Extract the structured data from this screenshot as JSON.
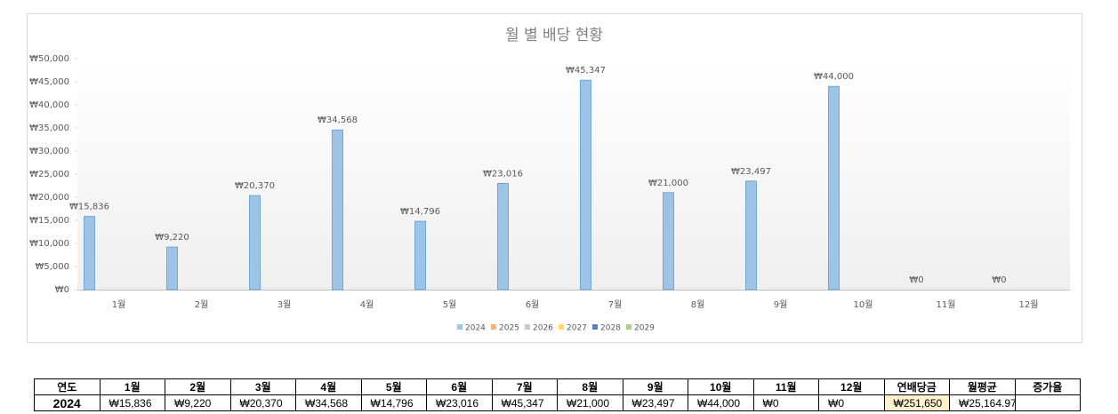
{
  "chart_data": {
    "type": "bar",
    "title": "월 별 배당 현황",
    "categories": [
      "1월",
      "2월",
      "3월",
      "4월",
      "5월",
      "6월",
      "7월",
      "8월",
      "9월",
      "10월",
      "11월",
      "12월"
    ],
    "series": [
      {
        "name": "2024",
        "color": "#9dc3e6",
        "values": [
          15836,
          9220,
          20370,
          34568,
          14796,
          23016,
          45347,
          21000,
          23497,
          44000,
          0,
          0
        ],
        "value_labels": [
          "₩15,836",
          "₩9,220",
          "₩20,370",
          "₩34,568",
          "₩14,796",
          "₩23,016",
          "₩45,347",
          "₩21,000",
          "₩23,497",
          "₩44,000",
          "₩0",
          "₩0"
        ]
      },
      {
        "name": "2025",
        "color": "#f4b183",
        "values": [
          null,
          null,
          null,
          null,
          null,
          null,
          null,
          null,
          null,
          null,
          null,
          null
        ]
      },
      {
        "name": "2026",
        "color": "#c9c9c9",
        "values": [
          null,
          null,
          null,
          null,
          null,
          null,
          null,
          null,
          null,
          null,
          null,
          null
        ]
      },
      {
        "name": "2027",
        "color": "#ffd966",
        "values": [
          null,
          null,
          null,
          null,
          null,
          null,
          null,
          null,
          null,
          null,
          null,
          null
        ]
      },
      {
        "name": "2028",
        "color": "#5b7fc4",
        "values": [
          null,
          null,
          null,
          null,
          null,
          null,
          null,
          null,
          null,
          null,
          null,
          null
        ]
      },
      {
        "name": "2029",
        "color": "#a9d18e",
        "values": [
          null,
          null,
          null,
          null,
          null,
          null,
          null,
          null,
          null,
          null,
          null,
          null
        ]
      }
    ],
    "ylim": [
      0,
      50000
    ],
    "yticks": [
      {
        "value": 0,
        "label": "₩0"
      },
      {
        "value": 5000,
        "label": "₩5,000"
      },
      {
        "value": 10000,
        "label": "₩10,000"
      },
      {
        "value": 15000,
        "label": "₩15,000"
      },
      {
        "value": 20000,
        "label": "₩20,000"
      },
      {
        "value": 25000,
        "label": "₩25,000"
      },
      {
        "value": 30000,
        "label": "₩30,000"
      },
      {
        "value": 35000,
        "label": "₩35,000"
      },
      {
        "value": 40000,
        "label": "₩40,000"
      },
      {
        "value": 45000,
        "label": "₩45,000"
      },
      {
        "value": 50000,
        "label": "₩50,000"
      }
    ],
    "grid": false,
    "legend": "bottom"
  },
  "table": {
    "header": [
      "연도",
      "1월",
      "2월",
      "3월",
      "4월",
      "5월",
      "6월",
      "7월",
      "8월",
      "9월",
      "10월",
      "11월",
      "12월",
      "연배당금",
      "월평균",
      "증가율"
    ],
    "rows": [
      [
        "2024",
        "₩15,836",
        "₩9,220",
        "₩20,370",
        "₩34,568",
        "₩14,796",
        "₩23,016",
        "₩45,347",
        "₩21,000",
        "₩23,497",
        "₩44,000",
        "₩0",
        "₩0",
        "₩251,650",
        "₩25,164.97"
      ]
    ]
  }
}
